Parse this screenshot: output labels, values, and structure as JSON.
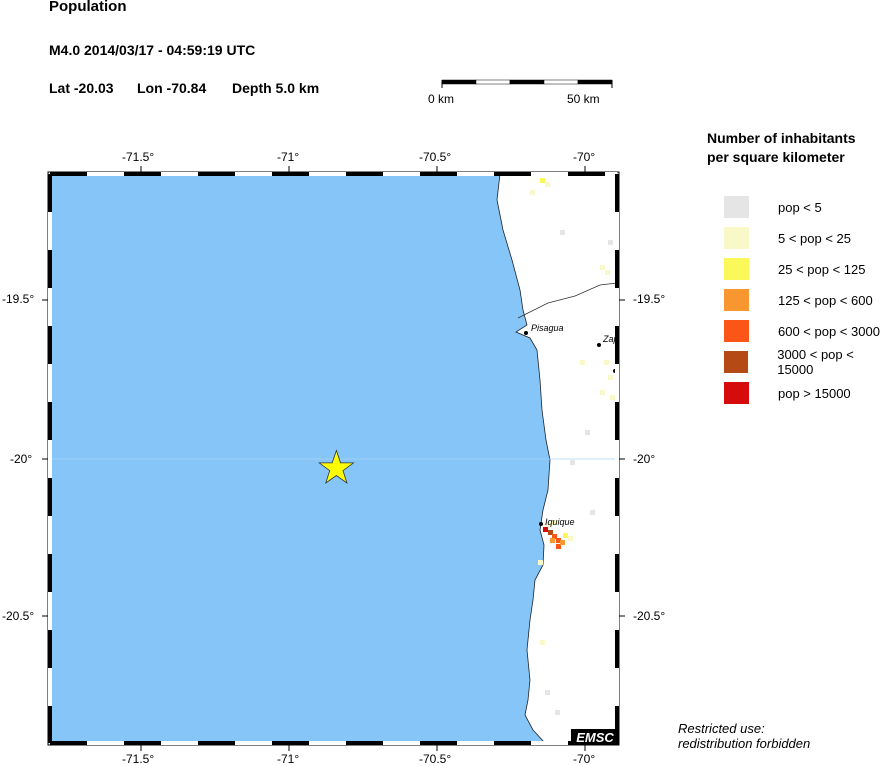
{
  "header": {
    "title": "Population",
    "event": "M4.0  2014/03/17 - 04:59:19 UTC",
    "lat": "Lat -20.03",
    "lon": "Lon -70.84",
    "depth": "Depth  5.0 km"
  },
  "scale_bar": {
    "start": "0 km",
    "end": "50 km"
  },
  "axes": {
    "lon_ticks": [
      "-71.5°",
      "-71°",
      "-70.5°",
      "-70°"
    ],
    "lat_ticks": [
      "-19.5°",
      "-20°",
      "-20.5°"
    ]
  },
  "epicenter": {
    "lat": -20.03,
    "lon": -70.84,
    "marker": "star-icon",
    "color": "#ffff00"
  },
  "cities": [
    "Pisagua",
    "Zap",
    "Iquique"
  ],
  "colors": {
    "sea": "#85c5f8",
    "land": "#ffffff"
  },
  "legend": {
    "title_line1": "Number of inhabitants",
    "title_line2": "per square kilometer",
    "items": [
      {
        "label": "pop < 5",
        "color": "#e5e5e5"
      },
      {
        "label": "5 < pop < 25",
        "color": "#f9f8c8"
      },
      {
        "label": "25 < pop < 125",
        "color": "#fbf85a"
      },
      {
        "label": "125 < pop < 600",
        "color": "#f8972f"
      },
      {
        "label": "600 < pop < 3000",
        "color": "#fb5617"
      },
      {
        "label": "3000 < pop < 15000",
        "color": "#b64a14"
      },
      {
        "label": "pop > 15000",
        "color": "#d60c0c"
      }
    ]
  },
  "footer": {
    "line1": "Restricted use:",
    "line2": "redistribution forbidden",
    "logo": "EMSC"
  }
}
